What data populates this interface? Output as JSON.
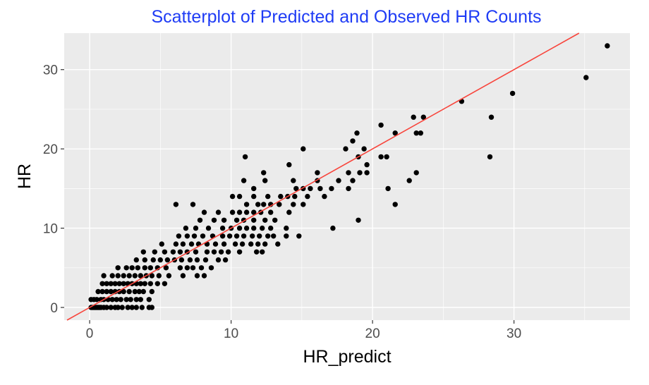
{
  "chart_data": {
    "type": "scatter",
    "title": "Scatterplot of Predicted and Observed HR Counts",
    "xlabel": "HR_predict",
    "ylabel": "HR",
    "xlim": [
      -1.8,
      38.2
    ],
    "ylim": [
      -1.6,
      34.6
    ],
    "xticks": [
      0,
      10,
      20,
      30
    ],
    "yticks": [
      0,
      10,
      20,
      30
    ],
    "grid": true,
    "colors": {
      "panel": "#ebebeb",
      "grid": "#ffffff",
      "points": "#000000",
      "line": "#f8453c",
      "title": "#1f3cf5"
    },
    "reference_line": {
      "intercept": 0,
      "slope": 1
    },
    "points": [
      [
        0.1,
        0
      ],
      [
        0.2,
        0
      ],
      [
        0.3,
        0
      ],
      [
        0.4,
        0
      ],
      [
        0.5,
        0
      ],
      [
        0.6,
        0
      ],
      [
        0.7,
        0
      ],
      [
        0.8,
        0
      ],
      [
        1.0,
        0
      ],
      [
        1.2,
        0
      ],
      [
        1.5,
        0
      ],
      [
        1.8,
        0
      ],
      [
        2.0,
        0
      ],
      [
        2.3,
        0
      ],
      [
        2.7,
        0
      ],
      [
        3.0,
        0
      ],
      [
        3.3,
        0
      ],
      [
        3.7,
        0
      ],
      [
        4.2,
        0
      ],
      [
        4.4,
        0
      ],
      [
        0.1,
        1
      ],
      [
        0.3,
        1
      ],
      [
        0.5,
        1
      ],
      [
        0.8,
        1
      ],
      [
        1.0,
        1
      ],
      [
        1.3,
        1
      ],
      [
        1.6,
        1
      ],
      [
        1.9,
        1
      ],
      [
        2.2,
        1
      ],
      [
        2.6,
        1
      ],
      [
        2.9,
        1
      ],
      [
        3.3,
        1
      ],
      [
        3.6,
        1
      ],
      [
        4.2,
        1
      ],
      [
        0.6,
        2
      ],
      [
        0.9,
        2
      ],
      [
        1.2,
        2
      ],
      [
        1.5,
        2
      ],
      [
        1.8,
        2
      ],
      [
        2.1,
        2
      ],
      [
        2.4,
        2
      ],
      [
        2.8,
        2
      ],
      [
        3.2,
        2
      ],
      [
        3.5,
        2
      ],
      [
        3.8,
        2
      ],
      [
        4.4,
        2
      ],
      [
        0.9,
        3
      ],
      [
        1.2,
        3
      ],
      [
        1.5,
        3
      ],
      [
        1.8,
        3
      ],
      [
        2.1,
        3
      ],
      [
        2.4,
        3
      ],
      [
        2.7,
        3
      ],
      [
        3.0,
        3
      ],
      [
        3.3,
        3
      ],
      [
        3.6,
        3
      ],
      [
        3.9,
        3
      ],
      [
        4.3,
        3
      ],
      [
        4.8,
        3
      ],
      [
        5.3,
        3
      ],
      [
        1.0,
        4
      ],
      [
        1.6,
        4
      ],
      [
        2.0,
        4
      ],
      [
        2.4,
        4
      ],
      [
        2.8,
        4
      ],
      [
        3.2,
        4
      ],
      [
        3.6,
        4
      ],
      [
        4.0,
        4
      ],
      [
        4.4,
        4
      ],
      [
        4.9,
        4
      ],
      [
        5.6,
        4
      ],
      [
        6.6,
        4
      ],
      [
        7.6,
        4
      ],
      [
        8.1,
        4
      ],
      [
        2.0,
        5
      ],
      [
        2.6,
        5
      ],
      [
        3.0,
        5
      ],
      [
        3.4,
        5
      ],
      [
        3.9,
        5
      ],
      [
        4.3,
        5
      ],
      [
        4.8,
        5
      ],
      [
        5.4,
        5
      ],
      [
        6.4,
        5
      ],
      [
        6.9,
        5
      ],
      [
        7.3,
        5
      ],
      [
        7.9,
        5
      ],
      [
        8.6,
        5
      ],
      [
        3.3,
        6
      ],
      [
        3.9,
        6
      ],
      [
        4.5,
        6
      ],
      [
        5.0,
        6
      ],
      [
        5.5,
        6
      ],
      [
        6.0,
        6
      ],
      [
        6.5,
        6
      ],
      [
        7.1,
        6
      ],
      [
        7.6,
        6
      ],
      [
        8.2,
        6
      ],
      [
        9.1,
        6
      ],
      [
        9.6,
        6
      ],
      [
        3.8,
        7
      ],
      [
        4.6,
        7
      ],
      [
        5.3,
        7
      ],
      [
        5.9,
        7
      ],
      [
        6.4,
        7
      ],
      [
        6.9,
        7
      ],
      [
        7.5,
        7
      ],
      [
        8.3,
        7
      ],
      [
        8.8,
        7
      ],
      [
        9.3,
        7
      ],
      [
        9.8,
        7
      ],
      [
        10.6,
        7
      ],
      [
        11.8,
        7
      ],
      [
        12.2,
        7
      ],
      [
        5.1,
        8
      ],
      [
        6.1,
        8
      ],
      [
        6.6,
        8
      ],
      [
        7.2,
        8
      ],
      [
        7.7,
        8
      ],
      [
        8.3,
        8
      ],
      [
        8.9,
        8
      ],
      [
        9.5,
        8
      ],
      [
        10.3,
        8
      ],
      [
        10.8,
        8
      ],
      [
        11.4,
        8
      ],
      [
        11.9,
        8
      ],
      [
        12.4,
        8
      ],
      [
        13.3,
        8
      ],
      [
        6.3,
        9
      ],
      [
        6.9,
        9
      ],
      [
        7.4,
        9
      ],
      [
        8.0,
        9
      ],
      [
        8.7,
        9
      ],
      [
        9.4,
        9
      ],
      [
        9.9,
        9
      ],
      [
        10.4,
        9
      ],
      [
        10.9,
        9
      ],
      [
        11.5,
        9
      ],
      [
        12.0,
        9
      ],
      [
        12.6,
        9
      ],
      [
        13.0,
        9
      ],
      [
        13.9,
        9
      ],
      [
        14.8,
        9
      ],
      [
        6.8,
        10
      ],
      [
        7.5,
        10
      ],
      [
        8.4,
        10
      ],
      [
        9.4,
        10
      ],
      [
        10.0,
        10
      ],
      [
        10.6,
        10
      ],
      [
        11.1,
        10
      ],
      [
        11.6,
        10
      ],
      [
        12.2,
        10
      ],
      [
        12.8,
        10
      ],
      [
        13.9,
        10
      ],
      [
        17.2,
        10
      ],
      [
        7.8,
        11
      ],
      [
        8.8,
        11
      ],
      [
        9.5,
        11
      ],
      [
        10.4,
        11
      ],
      [
        10.9,
        11
      ],
      [
        11.6,
        11
      ],
      [
        12.4,
        11
      ],
      [
        13.1,
        11
      ],
      [
        19.0,
        11
      ],
      [
        8.1,
        12
      ],
      [
        9.1,
        12
      ],
      [
        10.1,
        12
      ],
      [
        10.6,
        12
      ],
      [
        11.1,
        12
      ],
      [
        11.6,
        12
      ],
      [
        12.1,
        12
      ],
      [
        12.8,
        12
      ],
      [
        14.1,
        12
      ],
      [
        6.1,
        13
      ],
      [
        7.3,
        13
      ],
      [
        11.1,
        13
      ],
      [
        11.9,
        13
      ],
      [
        12.3,
        13
      ],
      [
        12.8,
        13
      ],
      [
        13.4,
        13
      ],
      [
        14.4,
        13
      ],
      [
        15.1,
        13
      ],
      [
        21.6,
        13
      ],
      [
        10.1,
        14
      ],
      [
        10.6,
        14
      ],
      [
        11.6,
        14
      ],
      [
        12.6,
        14
      ],
      [
        13.5,
        14
      ],
      [
        14.0,
        14
      ],
      [
        14.5,
        14
      ],
      [
        15.4,
        14
      ],
      [
        16.6,
        14
      ],
      [
        11.6,
        15
      ],
      [
        14.6,
        15
      ],
      [
        15.1,
        15
      ],
      [
        15.6,
        15
      ],
      [
        16.3,
        15
      ],
      [
        17.1,
        15
      ],
      [
        18.3,
        15
      ],
      [
        21.1,
        15
      ],
      [
        10.9,
        16
      ],
      [
        12.4,
        16
      ],
      [
        14.4,
        16
      ],
      [
        16.1,
        16
      ],
      [
        17.6,
        16
      ],
      [
        18.6,
        16
      ],
      [
        22.6,
        16
      ],
      [
        12.3,
        17
      ],
      [
        16.1,
        17
      ],
      [
        18.3,
        17
      ],
      [
        19.1,
        17
      ],
      [
        19.6,
        17
      ],
      [
        23.1,
        17
      ],
      [
        14.1,
        18
      ],
      [
        19.6,
        18
      ],
      [
        11.0,
        19
      ],
      [
        19.0,
        19
      ],
      [
        20.6,
        19
      ],
      [
        21.0,
        19
      ],
      [
        28.3,
        19
      ],
      [
        15.1,
        20
      ],
      [
        18.1,
        20
      ],
      [
        19.4,
        20
      ],
      [
        18.6,
        21
      ],
      [
        18.9,
        22
      ],
      [
        21.6,
        22
      ],
      [
        23.1,
        22
      ],
      [
        23.4,
        22
      ],
      [
        20.6,
        23
      ],
      [
        22.9,
        24
      ],
      [
        23.6,
        24
      ],
      [
        28.4,
        24
      ],
      [
        26.3,
        26
      ],
      [
        29.9,
        27
      ],
      [
        35.1,
        29
      ],
      [
        36.6,
        33
      ]
    ]
  }
}
